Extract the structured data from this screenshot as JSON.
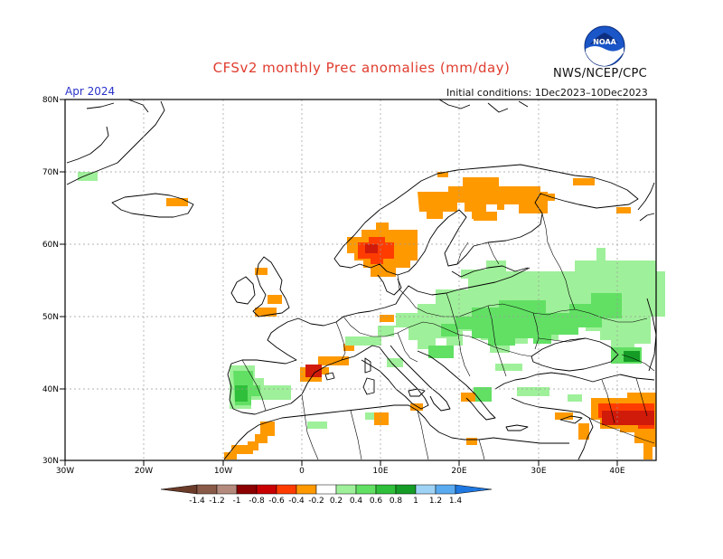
{
  "header": {
    "title": "CFSv2 monthly Prec anomalies (mm/day)",
    "org": "NWS/NCEP/CPC",
    "period": "Apr 2024",
    "initial_conditions": "Initial conditions: 1Dec2023–10Dec2023",
    "logo_text": "NOAA"
  },
  "axes": {
    "lat_labels": [
      "80N",
      "70N",
      "60N",
      "50N",
      "40N",
      "30N"
    ],
    "lon_labels": [
      "30W",
      "20W",
      "10W",
      "0",
      "10E",
      "20E",
      "30E",
      "40E"
    ]
  },
  "colorbar": {
    "labels": [
      "-1.4",
      "-1.2",
      "-1",
      "-0.8",
      "-0.6",
      "-0.4",
      "-0.2",
      "0.2",
      "0.4",
      "0.6",
      "0.8",
      "1",
      "1.2",
      "1.4"
    ],
    "colors": [
      "#6b3b2a",
      "#8a5a48",
      "#b48a7c",
      "#8c0000",
      "#c80000",
      "#ff3c00",
      "#ff9900",
      "#ffffff",
      "#9ff09a",
      "#62e064",
      "#2fbf3a",
      "#159c26",
      "#9fd3f5",
      "#5aaaf0",
      "#1f78e0"
    ]
  },
  "anomaly_colors": {
    "dry_light": "#ff9900",
    "dry_strong": "#ff3c00",
    "dry_extreme": "#d01a0a",
    "wet_light": "#9ff09a",
    "wet_medium": "#62e064",
    "wet_strong": "#2fbf3a",
    "wet_dark": "#159c26"
  }
}
